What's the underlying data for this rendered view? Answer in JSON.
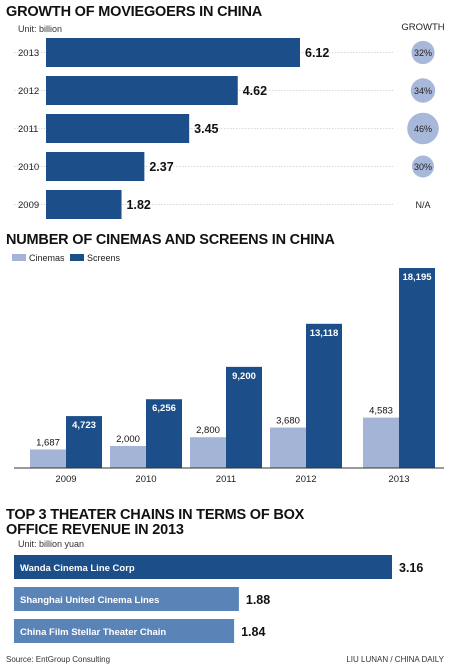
{
  "colors": {
    "navy": "#1c4e89",
    "light_bar": "#a4b4d6",
    "circle": "#a8b8da",
    "chain_bar": "#5a84b8",
    "title": "#111111"
  },
  "chart_data": [
    {
      "type": "bar",
      "orientation": "horizontal",
      "title": "GROWTH OF MOVIEGOERS IN CHINA",
      "unit": "Unit: billion",
      "categories": [
        "2013",
        "2012",
        "2011",
        "2010",
        "2009"
      ],
      "values": [
        6.12,
        4.62,
        3.45,
        2.37,
        1.82
      ],
      "value_labels": [
        "6.12",
        "4.62",
        "3.45",
        "2.37",
        "1.82"
      ],
      "growth_header": "GROWTH",
      "growth": [
        "32%",
        "34%",
        "46%",
        "30%",
        "N/A"
      ],
      "color": "#1c4e89"
    },
    {
      "type": "bar",
      "title": "NUMBER OF CINEMAS AND SCREENS IN CHINA",
      "categories": [
        "2009",
        "2010",
        "2011",
        "2012",
        "2013"
      ],
      "series": [
        {
          "name": "Cinemas",
          "values": [
            1687,
            2000,
            2800,
            3680,
            4583
          ],
          "labels": [
            "1,687",
            "2,000",
            "2,800",
            "3,680",
            "4,583"
          ],
          "color": "#a4b4d6"
        },
        {
          "name": "Screens",
          "values": [
            4723,
            6256,
            9200,
            13118,
            18195
          ],
          "labels": [
            "4,723",
            "6,256",
            "9,200",
            "13,118",
            "18,195"
          ],
          "color": "#1c4e89"
        }
      ],
      "legend_position": "top-left",
      "ylim": [
        0,
        18195
      ]
    },
    {
      "type": "bar",
      "orientation": "horizontal",
      "title_lines": [
        "TOP 3 THEATER CHAINS IN TERMS OF BOX",
        "OFFICE REVENUE IN 2013"
      ],
      "unit": "Unit: billion yuan",
      "categories": [
        "Wanda Cinema Line Corp",
        "Shanghai United Cinema Lines",
        "China Film Stellar Theater Chain"
      ],
      "values": [
        3.16,
        1.88,
        1.84
      ],
      "value_labels": [
        "3.16",
        "1.88",
        "1.84"
      ],
      "colors": [
        "#1c4e89",
        "#5a84b8",
        "#5a84b8"
      ]
    }
  ],
  "footer": {
    "source": "Source: EntGroup Consulting",
    "credit": "LIU LUNAN / CHINA DAILY"
  }
}
